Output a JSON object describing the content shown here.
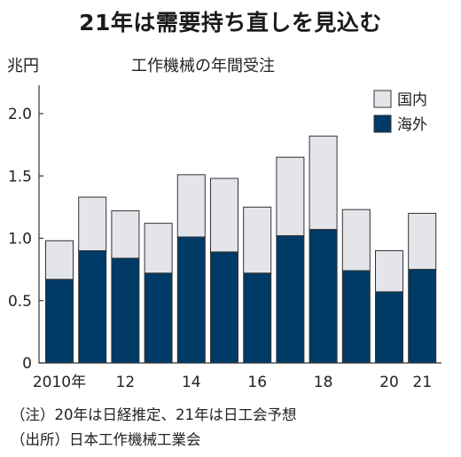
{
  "header": {
    "headline": "21年は需要持ち直しを見込む",
    "unit": "兆円",
    "subtitle": "工作機械の年間受注"
  },
  "notes": {
    "note1": "（注）20年は日経推定、21年は日工会予想",
    "note2": "（出所）日本工作機械工業会"
  },
  "colors": {
    "overseas": "#003a66",
    "domestic": "#e3e5ea",
    "bar_stroke": "#333333",
    "axis": "#333333"
  },
  "chart_data": {
    "type": "bar",
    "stacked": true,
    "title": "工作機械の年間受注",
    "ylabel": "兆円",
    "ylim": [
      0,
      2.0
    ],
    "yticks": [
      0,
      0.5,
      1.0,
      1.5,
      2.0
    ],
    "ytick_labels": [
      "0",
      "0.5",
      "1.0",
      "1.5",
      "2.0"
    ],
    "categories": [
      "2010",
      "2011",
      "2012",
      "2013",
      "2014",
      "2015",
      "2016",
      "2017",
      "2018",
      "2019",
      "2020",
      "2021"
    ],
    "xtick_labels": [
      "2010年",
      "",
      "12",
      "",
      "14",
      "",
      "16",
      "",
      "18",
      "",
      "20",
      "21"
    ],
    "series": [
      {
        "name": "海外",
        "values": [
          0.67,
          0.9,
          0.84,
          0.72,
          1.01,
          0.89,
          0.72,
          1.02,
          1.07,
          0.74,
          0.57,
          0.75
        ]
      },
      {
        "name": "国内",
        "values": [
          0.31,
          0.43,
          0.38,
          0.4,
          0.5,
          0.59,
          0.53,
          0.63,
          0.75,
          0.49,
          0.33,
          0.45
        ]
      }
    ],
    "legend": [
      "国内",
      "海外"
    ],
    "legend_position": "top-right",
    "grid": false
  }
}
